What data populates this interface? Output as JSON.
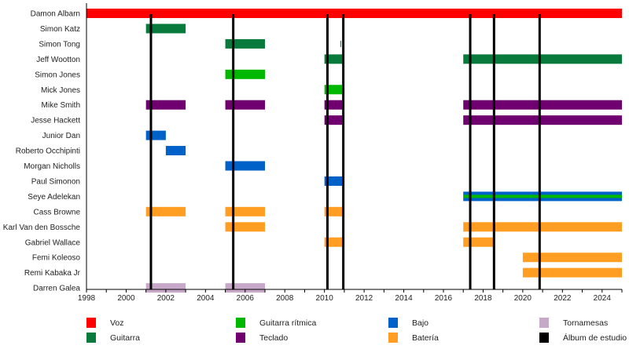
{
  "chart_data": {
    "type": "timeline",
    "title": "",
    "xlabel": "",
    "ylabel": "",
    "xlim": [
      1998,
      2025
    ],
    "x_ticks": [
      1998,
      2000,
      2002,
      2004,
      2006,
      2008,
      2010,
      2012,
      2014,
      2016,
      2018,
      2020,
      2022,
      2024
    ],
    "grid": false,
    "legend_position": "bottom",
    "roles": {
      "voz": {
        "label": "Voz",
        "color": "#ff0000"
      },
      "guitarra": {
        "label": "Guitarra",
        "color": "#087a3b"
      },
      "guitarra_ritmica": {
        "label": "Guitarra rítmica",
        "color": "#00b800"
      },
      "teclado": {
        "label": "Teclado",
        "color": "#700070"
      },
      "bajo": {
        "label": "Bajo",
        "color": "#0062c8"
      },
      "bateria": {
        "label": "Batería",
        "color": "#ff9e22"
      },
      "tornamesas": {
        "label": "Tornamesas",
        "color": "#c8a8c8"
      },
      "album": {
        "label": "Álbum de estudio",
        "color": "#000000"
      }
    },
    "legend_order": [
      [
        "voz",
        "guitarra"
      ],
      [
        "guitarra_ritmica",
        "teclado"
      ],
      [
        "bajo",
        "bateria"
      ],
      [
        "tornamesas",
        "album"
      ]
    ],
    "members": [
      {
        "name": "Damon Albarn",
        "bars": [
          {
            "role": "voz",
            "start": 1998,
            "end": 2025
          }
        ]
      },
      {
        "name": "Simon Katz",
        "bars": [
          {
            "role": "guitarra",
            "start": 2001,
            "end": 2003
          }
        ]
      },
      {
        "name": "Simon Tong",
        "bars": [
          {
            "role": "guitarra",
            "start": 2005,
            "end": 2007
          },
          {
            "role": "guitarra",
            "start": 2010.8,
            "end": 2010.85,
            "thin": true
          }
        ]
      },
      {
        "name": "Jeff Wootton",
        "bars": [
          {
            "role": "guitarra",
            "start": 2010,
            "end": 2011
          },
          {
            "role": "guitarra",
            "start": 2017,
            "end": 2025
          }
        ]
      },
      {
        "name": "Simon Jones",
        "bars": [
          {
            "role": "guitarra_ritmica",
            "start": 2005,
            "end": 2007
          }
        ]
      },
      {
        "name": "Mick Jones",
        "bars": [
          {
            "role": "guitarra_ritmica",
            "start": 2010,
            "end": 2011
          }
        ]
      },
      {
        "name": "Mike Smith",
        "bars": [
          {
            "role": "teclado",
            "start": 2001,
            "end": 2003
          },
          {
            "role": "teclado",
            "start": 2005,
            "end": 2007
          },
          {
            "role": "teclado",
            "start": 2010,
            "end": 2011
          },
          {
            "role": "teclado",
            "start": 2017,
            "end": 2025
          }
        ]
      },
      {
        "name": "Jesse Hackett",
        "bars": [
          {
            "role": "teclado",
            "start": 2010,
            "end": 2011
          },
          {
            "role": "teclado",
            "start": 2017,
            "end": 2025
          }
        ]
      },
      {
        "name": "Junior Dan",
        "bars": [
          {
            "role": "bajo",
            "start": 2001,
            "end": 2002
          }
        ]
      },
      {
        "name": "Roberto Occhipinti",
        "bars": [
          {
            "role": "bajo",
            "start": 2002,
            "end": 2003
          }
        ]
      },
      {
        "name": "Morgan Nicholls",
        "bars": [
          {
            "role": "bajo",
            "start": 2005,
            "end": 2007
          }
        ]
      },
      {
        "name": "Paul Simonon",
        "bars": [
          {
            "role": "bajo",
            "start": 2010,
            "end": 2011
          }
        ]
      },
      {
        "name": "Seye Adelekan",
        "bars": [
          {
            "role": "bajo",
            "start": 2017,
            "end": 2025,
            "stripe": "guitarra_ritmica"
          }
        ]
      },
      {
        "name": "Cass Browne",
        "bars": [
          {
            "role": "bateria",
            "start": 2001,
            "end": 2003
          },
          {
            "role": "bateria",
            "start": 2005,
            "end": 2007
          },
          {
            "role": "bateria",
            "start": 2010,
            "end": 2011
          }
        ]
      },
      {
        "name": "Karl Van den Bossche",
        "bars": [
          {
            "role": "bateria",
            "start": 2005,
            "end": 2007
          },
          {
            "role": "bateria",
            "start": 2017,
            "end": 2025
          }
        ]
      },
      {
        "name": "Gabriel Wallace",
        "bars": [
          {
            "role": "bateria",
            "start": 2010,
            "end": 2011
          },
          {
            "role": "bateria",
            "start": 2017,
            "end": 2018.6
          }
        ]
      },
      {
        "name": "Femi Koleoso",
        "bars": [
          {
            "role": "bateria",
            "start": 2020,
            "end": 2025
          }
        ]
      },
      {
        "name": "Remi Kabaka Jr",
        "bars": [
          {
            "role": "bateria",
            "start": 2020,
            "end": 2025
          }
        ]
      },
      {
        "name": "Darren Galea",
        "bars": [
          {
            "role": "tornamesas",
            "start": 2001,
            "end": 2003
          },
          {
            "role": "tornamesas",
            "start": 2005,
            "end": 2007
          }
        ]
      }
    ],
    "albums": [
      2001.25,
      2005.4,
      2010.15,
      2010.95,
      2017.35,
      2018.55,
      2020.85
    ]
  }
}
